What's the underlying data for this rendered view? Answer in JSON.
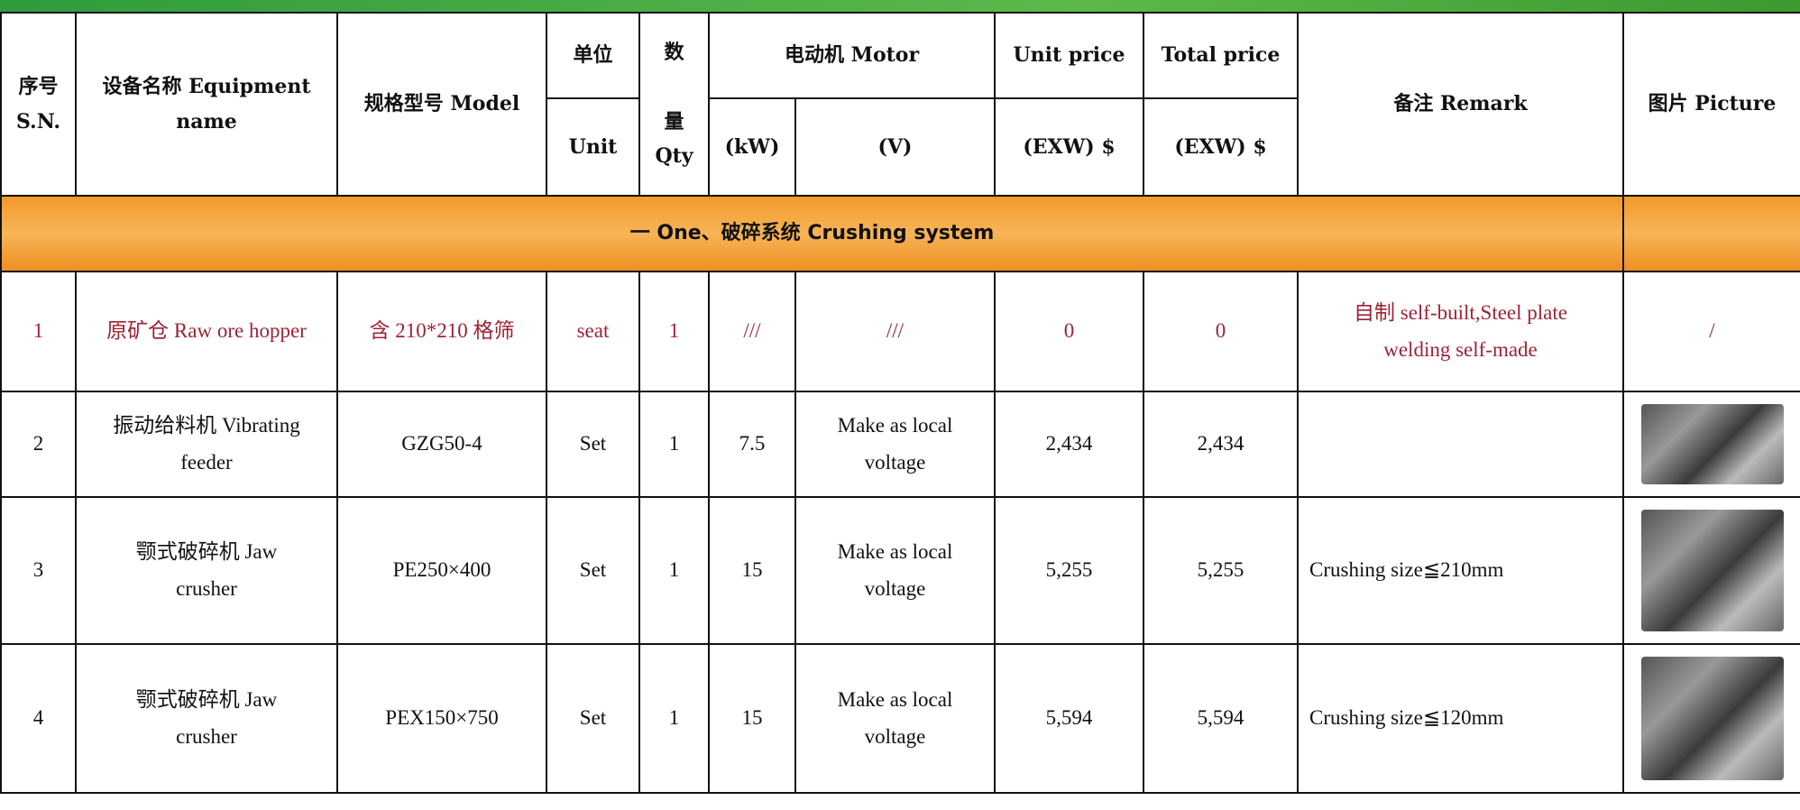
{
  "header": {
    "sn": "序号\nS.N.",
    "name": "设备名称 Equipment\nname",
    "model": "规格型号 Model",
    "unit": "单位",
    "unit_sub": "Unit",
    "qty": "数\n\n量\nQty",
    "motor": "电动机 Motor",
    "kw": "(kW)",
    "v": "(V)",
    "unit_price": "Unit price",
    "unit_price_sub": "(EXW) $",
    "total_price": "Total price",
    "total_price_sub": "(EXW) $",
    "remark": "备注 Remark",
    "picture": "图片 Picture"
  },
  "section": "一 One、破碎系统 Crushing system",
  "rows": [
    {
      "sn": "1",
      "name": "原矿仓 Raw ore hopper",
      "model": "含 210*210 格筛",
      "unit": "seat",
      "qty": "1",
      "kw": "///",
      "v": "///",
      "unit_price": "0",
      "total_price": "0",
      "remark": "自制 self-built,Steel plate\nwelding self-made",
      "picture": "/"
    },
    {
      "sn": "2",
      "name": "振动给料机 Vibrating\nfeeder",
      "model": "GZG50-4",
      "unit": "Set",
      "qty": "1",
      "kw": "7.5",
      "v": "Make as local\nvoltage",
      "unit_price": "2,434",
      "total_price": "2,434",
      "remark": ""
    },
    {
      "sn": "3",
      "name": "颚式破碎机 Jaw\ncrusher",
      "model": "PE250×400",
      "unit": "Set",
      "qty": "1",
      "kw": "15",
      "v": "Make as local\nvoltage",
      "unit_price": "5,255",
      "total_price": "5,255",
      "remark": "Crushing size≦210mm"
    },
    {
      "sn": "4",
      "name": "颚式破碎机 Jaw\ncrusher",
      "model": "PEX150×750",
      "unit": "Set",
      "qty": "1",
      "kw": "15",
      "v": "Make as local\nvoltage",
      "unit_price": "5,594",
      "total_price": "5,594",
      "remark": "Crushing size≦120mm"
    }
  ]
}
